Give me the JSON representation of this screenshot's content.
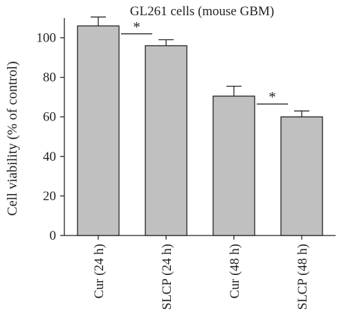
{
  "chart_data": {
    "type": "bar",
    "title": "GL261 cells (mouse GBM)",
    "xlabel": "",
    "ylabel": "Cell viability (% of control)",
    "categories": [
      "Cur (24 h)",
      "SLCP (24 h)",
      "Cur (48 h)",
      "SLCP (48 h)"
    ],
    "values": [
      106,
      96,
      70.5,
      60
    ],
    "errors": [
      4.5,
      3,
      5,
      3
    ],
    "ylim": [
      0,
      110
    ],
    "yticks": [
      0,
      20,
      40,
      60,
      80,
      100
    ],
    "grid": false,
    "legend": "none",
    "significance": [
      {
        "between": [
          0,
          1
        ],
        "label": "*",
        "y": 102
      },
      {
        "between": [
          2,
          3
        ],
        "label": "*",
        "y": 66.5
      }
    ],
    "colors": {
      "bar_fill": "#c0c0c0",
      "bar_stroke": "#231f20",
      "axis": "#231f20"
    }
  }
}
